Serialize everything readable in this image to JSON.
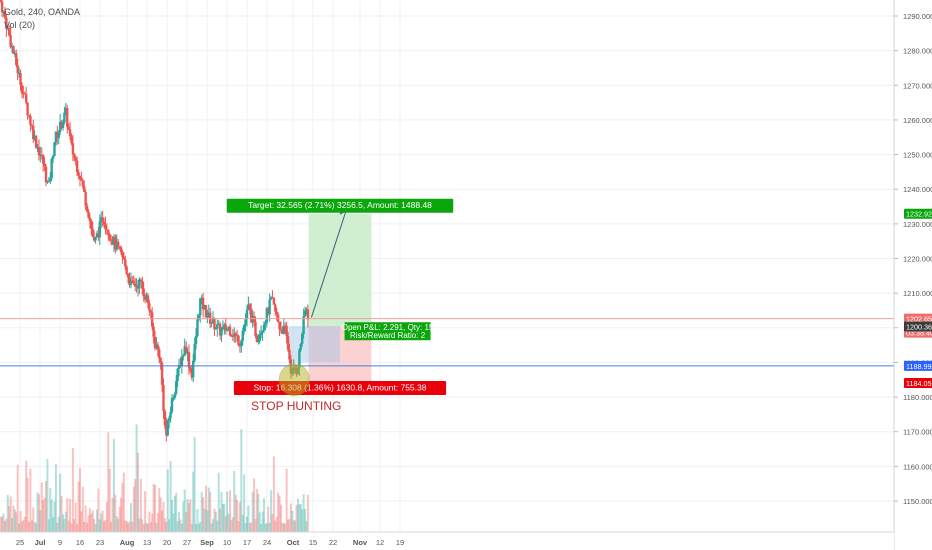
{
  "legend": {
    "symbol": "Gold, 240, OANDA",
    "volume": "Vol (20)"
  },
  "colors": {
    "up": "#26a69a",
    "down": "#ef5350",
    "grid": "#eef0f3",
    "axis_text": "#555555",
    "target_zone": "#c8ebc8",
    "stop_zone": "#fcc9c9",
    "target_label": "#0ba60b",
    "stop_label": "#e8000b",
    "price_line": "#f0a0a0",
    "stop_line": "#3f7fe0",
    "highlight_ellipse": "#b7b322",
    "annotation_text": "#c22828"
  },
  "chart_data": {
    "type": "candlestick",
    "y_axis": {
      "ylim": [
        1141,
        1296
      ],
      "ticks": [
        1150,
        1160,
        1170,
        1180,
        1190,
        1200,
        1210,
        1220,
        1230,
        1240,
        1250,
        1260,
        1270,
        1280,
        1290
      ],
      "tick_labels": [
        "1150.000",
        "1160.000",
        "1170.000",
        "1180.000",
        "1190.000",
        "1200.000",
        "1210.000",
        "1220.000",
        "1230.000",
        "1240.000",
        "1250.000",
        "1260.000",
        "1270.000",
        "1280.000",
        "1290.000"
      ]
    },
    "x_axis": {
      "tick_labels": [
        "25",
        "Jul",
        "9",
        "16",
        "23",
        "Aug",
        "13",
        "20",
        "27",
        "Sep",
        "10",
        "17",
        "24",
        "Oct",
        "15",
        "22",
        "Nov",
        "12",
        "19"
      ]
    },
    "price_path": [
      {
        "date": "2018-06-24",
        "close": 1275
      },
      {
        "date": "2018-06-27",
        "close": 1265
      },
      {
        "date": "2018-06-30",
        "close": 1255
      },
      {
        "date": "2018-07-03",
        "close": 1248
      },
      {
        "date": "2018-07-05",
        "close": 1240
      },
      {
        "date": "2018-07-07",
        "close": 1254
      },
      {
        "date": "2018-07-11",
        "close": 1262
      },
      {
        "date": "2018-07-13",
        "close": 1252
      },
      {
        "date": "2018-07-16",
        "close": 1244
      },
      {
        "date": "2018-07-19",
        "close": 1233
      },
      {
        "date": "2018-07-21",
        "close": 1224
      },
      {
        "date": "2018-07-24",
        "close": 1232
      },
      {
        "date": "2018-07-27",
        "close": 1226
      },
      {
        "date": "2018-07-31",
        "close": 1220
      },
      {
        "date": "2018-08-03",
        "close": 1212
      },
      {
        "date": "2018-08-06",
        "close": 1213
      },
      {
        "date": "2018-08-09",
        "close": 1207
      },
      {
        "date": "2018-08-11",
        "close": 1196
      },
      {
        "date": "2018-08-13",
        "close": 1192
      },
      {
        "date": "2018-08-15",
        "close": 1168
      },
      {
        "date": "2018-08-17",
        "close": 1178
      },
      {
        "date": "2018-08-20",
        "close": 1190
      },
      {
        "date": "2018-08-22",
        "close": 1195
      },
      {
        "date": "2018-08-24",
        "close": 1186
      },
      {
        "date": "2018-08-27",
        "close": 1208
      },
      {
        "date": "2018-08-30",
        "close": 1203
      },
      {
        "date": "2018-09-03",
        "close": 1199
      },
      {
        "date": "2018-09-06",
        "close": 1200
      },
      {
        "date": "2018-09-10",
        "close": 1196
      },
      {
        "date": "2018-09-13",
        "close": 1206
      },
      {
        "date": "2018-09-16",
        "close": 1197
      },
      {
        "date": "2018-09-19",
        "close": 1203
      },
      {
        "date": "2018-09-21",
        "close": 1208
      },
      {
        "date": "2018-09-24",
        "close": 1200
      },
      {
        "date": "2018-09-26",
        "close": 1199
      },
      {
        "date": "2018-09-28",
        "close": 1187
      },
      {
        "date": "2018-09-30",
        "close": 1188
      },
      {
        "date": "2018-10-02",
        "close": 1200
      },
      {
        "date": "2018-10-03",
        "close": 1206
      },
      {
        "date": "2018-10-04",
        "close": 1203
      }
    ],
    "price_levels": [
      {
        "label": "1232.929",
        "value": 1232.929,
        "role": "target"
      },
      {
        "label": "1202.655",
        "value": 1202.655,
        "role": "last-price"
      },
      {
        "label": "03:38:40",
        "value": 1198.6,
        "role": "countdown"
      },
      {
        "label": "1200.364",
        "value": 1200.364,
        "role": "entry"
      },
      {
        "label": "1188.992",
        "value": 1188.992,
        "role": "horizontal-line"
      },
      {
        "label": "1184.056",
        "value": 1184.056,
        "role": "stop"
      }
    ],
    "position": {
      "start_date": "2018-10-04",
      "end_date": "2018-10-26",
      "entry": 1200.364,
      "target": 1232.929,
      "stop": 1184.056,
      "target_text": "Target: 32.565 (2.71%) 3256.5, Amount: 1488.48",
      "stop_text": "Stop: 16.308 (1.36%) 1630.8, Amount: 755.38",
      "pnl_text": "Open P&L: 2.291, Qty: 15",
      "ratio_text": "Risk/Reward Ratio: 2"
    },
    "annotation": "STOP HUNTING",
    "volume_series": "Vol (20)"
  }
}
